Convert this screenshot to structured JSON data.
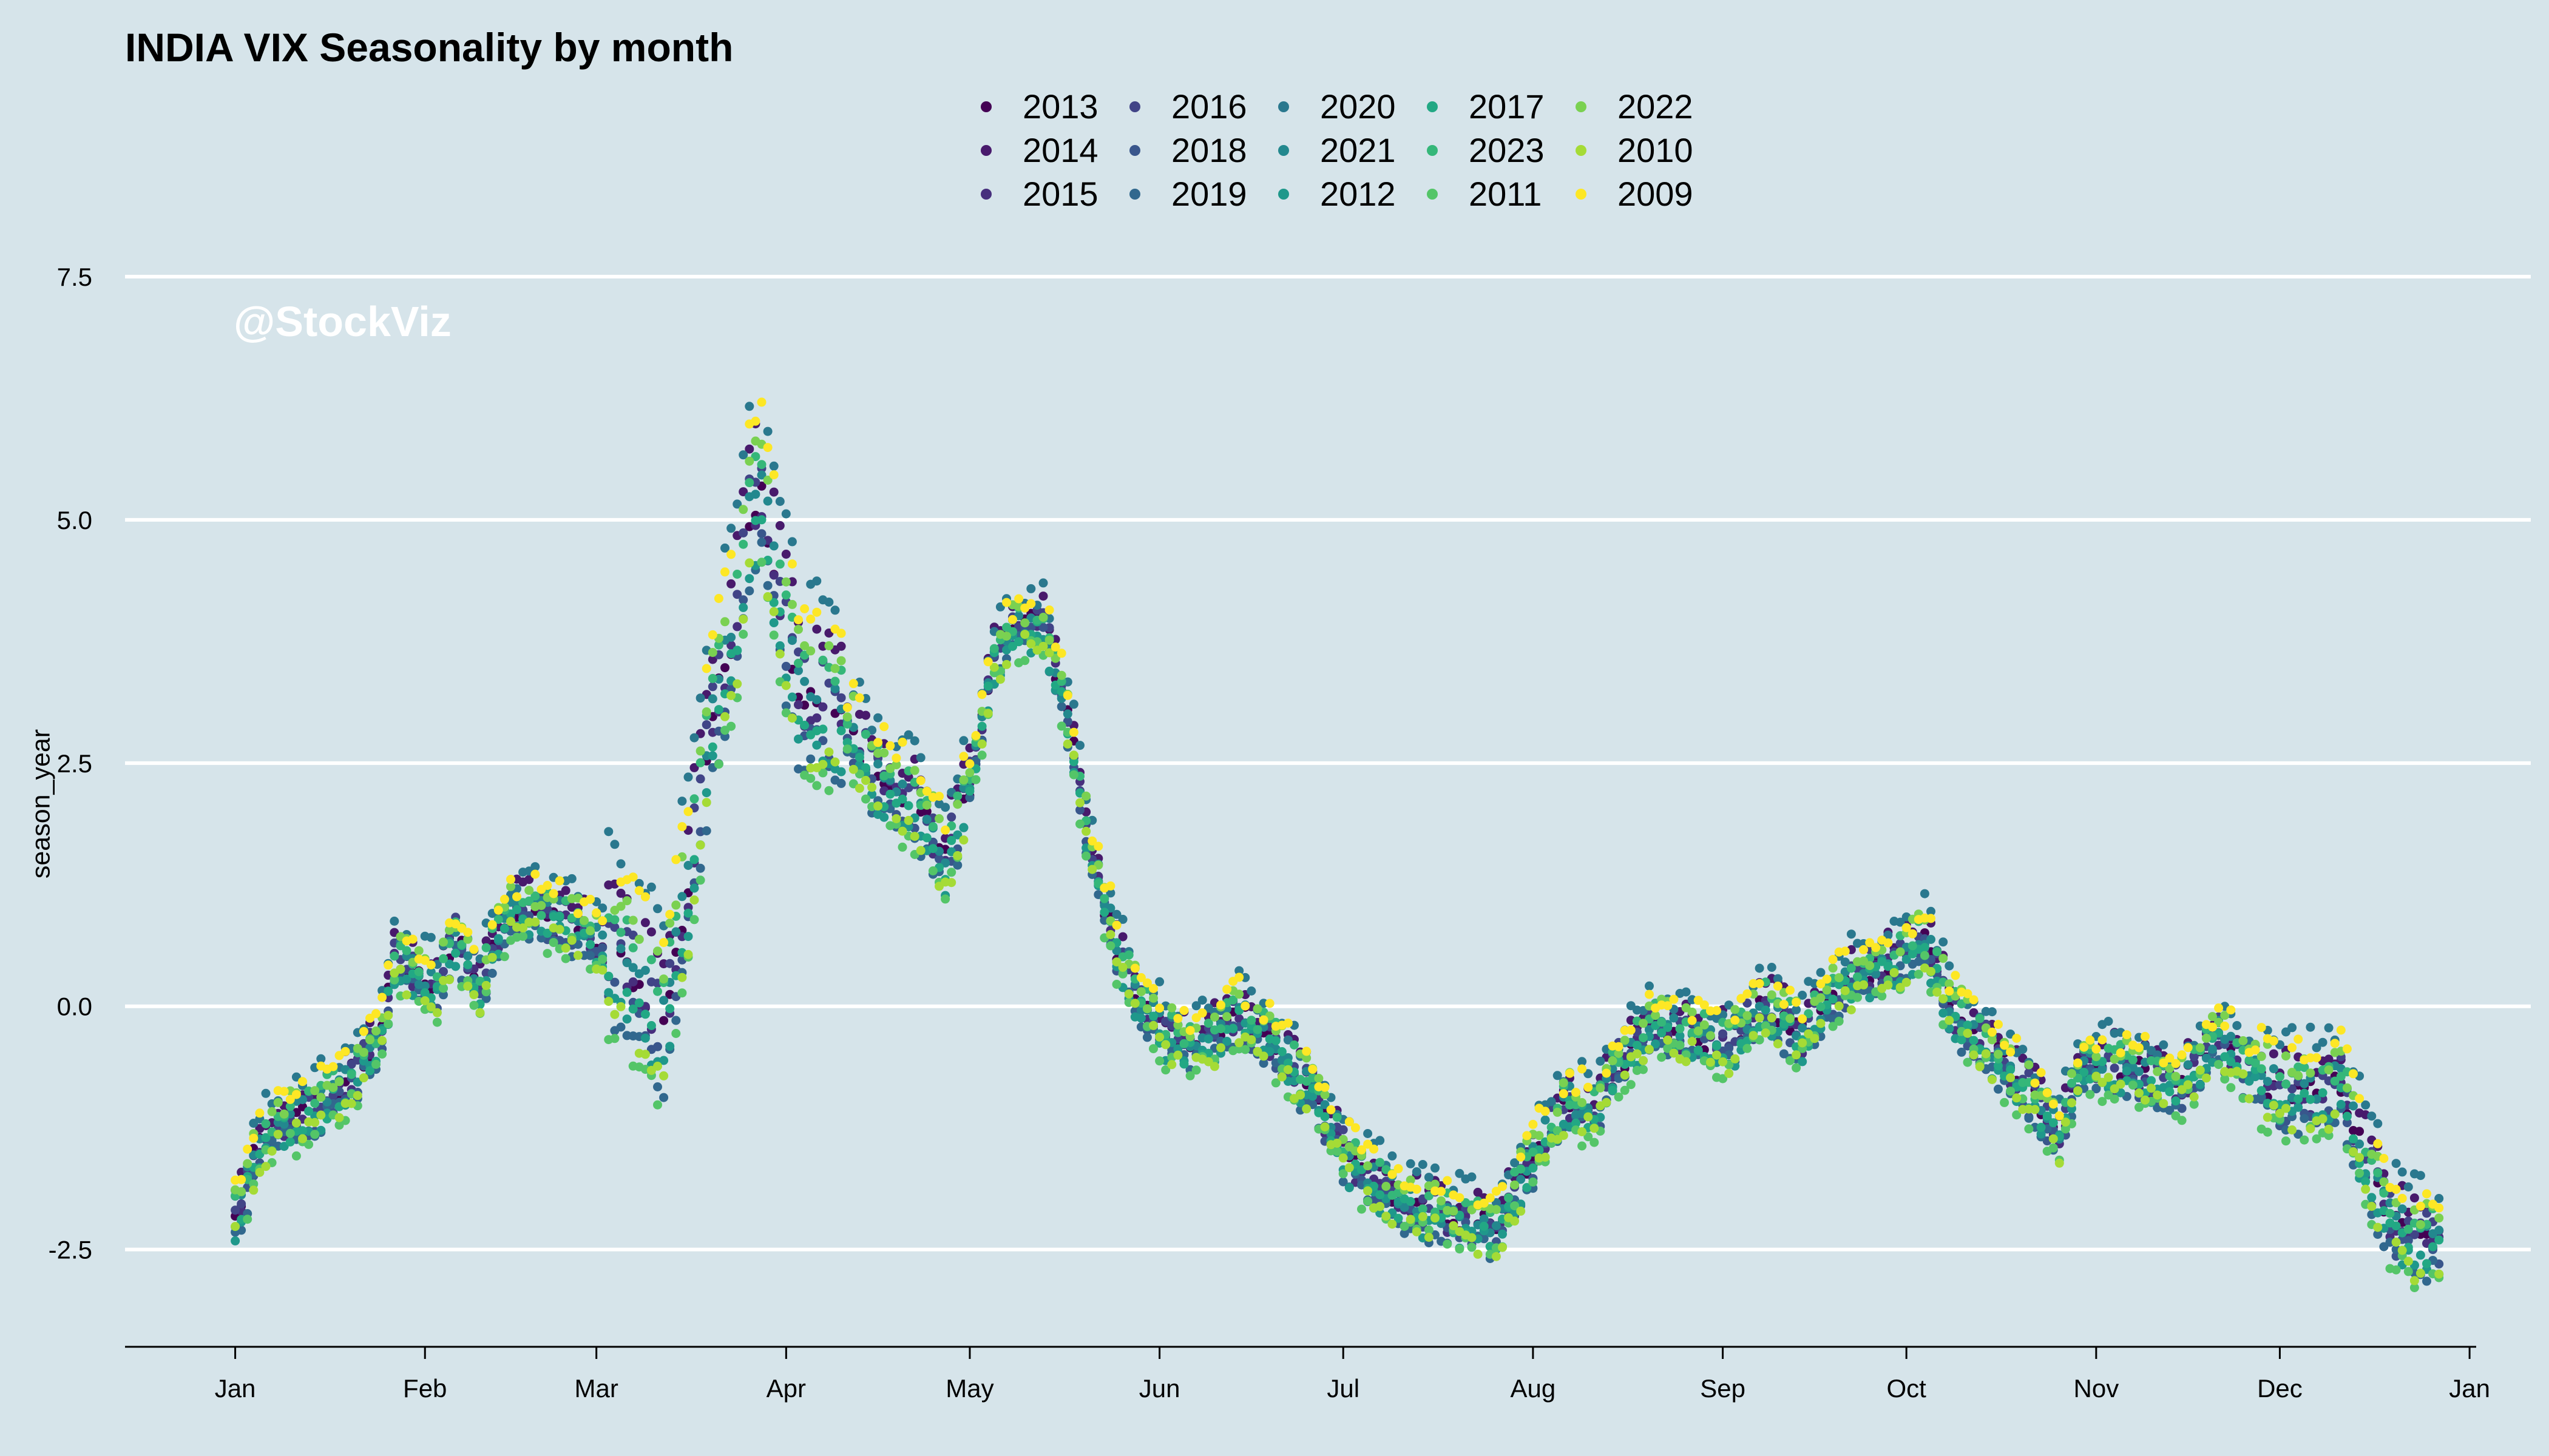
{
  "chart_data": {
    "type": "scatter",
    "title": "INDIA VIX Seasonality by month",
    "xlabel": "",
    "ylabel": "season_year",
    "watermark": "@StockViz",
    "ylim": [
      -3.5,
      7.6
    ],
    "y_ticks": [
      -2.5,
      0.0,
      2.5,
      5.0,
      7.5
    ],
    "y_tick_labels": [
      "-2.5",
      "0.0",
      "2.5",
      "5.0",
      "7.5"
    ],
    "x_tick_labels": [
      "Jan",
      "Feb",
      "Mar",
      "Apr",
      "May",
      "Jun",
      "Jul",
      "Aug",
      "Sep",
      "Oct",
      "Nov",
      "Dec",
      "Jan"
    ],
    "x_tick_days": [
      0,
      31,
      59,
      90,
      120,
      151,
      181,
      212,
      243,
      273,
      304,
      334,
      365
    ],
    "xlim": [
      -18,
      375
    ],
    "grid": "horizontal",
    "legend_position": "top",
    "legend_columns": 5,
    "background_color": "#d6e4ea",
    "series": [
      {
        "name": "2013",
        "color": "#440154",
        "offset": 0.0
      },
      {
        "name": "2014",
        "color": "#481a6c",
        "offset": 0.22
      },
      {
        "name": "2015",
        "color": "#472f7d",
        "offset": -0.05
      },
      {
        "name": "2016",
        "color": "#414487",
        "offset": 0.1
      },
      {
        "name": "2018",
        "color": "#39568c",
        "offset": -0.12
      },
      {
        "name": "2019",
        "color": "#31688e",
        "offset": -0.2
      },
      {
        "name": "2020",
        "color": "#2a788e",
        "offset": 0.35
      },
      {
        "name": "2021",
        "color": "#23888e",
        "offset": 0.05
      },
      {
        "name": "2012",
        "color": "#1f988b",
        "offset": -0.15
      },
      {
        "name": "2017",
        "color": "#22a884",
        "offset": -0.08
      },
      {
        "name": "2023",
        "color": "#35b779",
        "offset": 0.12
      },
      {
        "name": "2011",
        "color": "#54c568",
        "offset": -0.25
      },
      {
        "name": "2022",
        "color": "#7ad151",
        "offset": 0.18
      },
      {
        "name": "2010",
        "color": "#a5db36",
        "offset": -0.18
      },
      {
        "name": "2009",
        "color": "#fde725",
        "offset": 0.28
      }
    ],
    "seasonal_profile": {
      "x": [
        0,
        4,
        8,
        12,
        18,
        24,
        26,
        30,
        33,
        36,
        40,
        44,
        48,
        52,
        56,
        60,
        64,
        70,
        74,
        78,
        82,
        84,
        86,
        88,
        92,
        96,
        100,
        104,
        108,
        112,
        116,
        120,
        124,
        128,
        132,
        136,
        140,
        144,
        148,
        152,
        156,
        160,
        164,
        170,
        176,
        182,
        188,
        194,
        200,
        206,
        210,
        214,
        218,
        222,
        226,
        232,
        238,
        244,
        250,
        256,
        262,
        268,
        272,
        276,
        280,
        286,
        292,
        298,
        302,
        306,
        312,
        318,
        324,
        328,
        334,
        340,
        344,
        348,
        352,
        356,
        360
      ],
      "y": [
        -2.2,
        -1.4,
        -1.2,
        -1.1,
        -0.8,
        -0.3,
        0.5,
        0.3,
        0.2,
        0.7,
        0.2,
        0.9,
        1.0,
        0.9,
        0.8,
        0.6,
        0.4,
        -0.2,
        1.2,
        3.0,
        4.0,
        5.0,
        5.3,
        4.5,
        3.2,
        3.1,
        2.9,
        2.4,
        2.2,
        2.0,
        1.5,
        2.3,
        3.6,
        3.9,
        3.9,
        3.0,
        1.5,
        0.6,
        0.0,
        -0.3,
        -0.4,
        -0.3,
        -0.1,
        -0.4,
        -0.9,
        -1.6,
        -1.9,
        -2.1,
        -2.2,
        -2.3,
        -1.8,
        -1.3,
        -1.0,
        -1.1,
        -0.6,
        -0.2,
        -0.3,
        -0.4,
        0.0,
        -0.3,
        0.2,
        0.4,
        0.5,
        0.7,
        0.0,
        -0.4,
        -0.8,
        -1.3,
        -0.6,
        -0.6,
        -0.7,
        -0.8,
        -0.3,
        -0.6,
        -0.9,
        -0.9,
        -0.8,
        -1.6,
        -2.2,
        -2.4,
        -2.4
      ]
    }
  }
}
